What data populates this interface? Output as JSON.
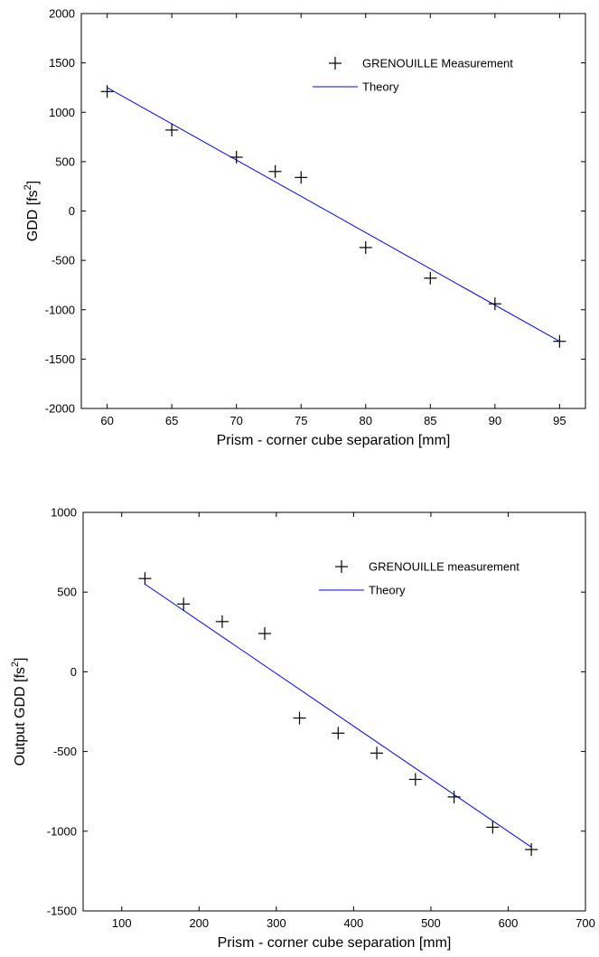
{
  "chart_data": [
    {
      "type": "scatter",
      "xlabel": "Prism - corner cube separation [mm]",
      "ylabel_main": "GDD [fs",
      "ylabel_sup": "2",
      "ylabel_end": "]",
      "xlim": [
        58,
        97
      ],
      "ylim": [
        -2000,
        2000
      ],
      "xticks": [
        60,
        65,
        70,
        75,
        80,
        85,
        90,
        95
      ],
      "yticks": [
        -2000,
        -1500,
        -1000,
        -500,
        0,
        500,
        1000,
        1500,
        2000
      ],
      "grid": false,
      "legend_position": "top-right",
      "series": [
        {
          "name": "GRENOUILLE Measurement",
          "marker": "plus",
          "color": "#000000",
          "x": [
            60,
            65,
            70,
            73,
            75,
            80,
            85,
            90,
            95
          ],
          "y": [
            1210,
            820,
            545,
            400,
            340,
            -370,
            -680,
            -940,
            -1320
          ]
        },
        {
          "name": "Theory",
          "style": "line",
          "color": "#0000ff",
          "x": [
            60,
            95
          ],
          "y": [
            1250,
            -1320
          ]
        }
      ]
    },
    {
      "type": "scatter",
      "xlabel": "Prism - corner cube separation [mm]",
      "ylabel_main": "Output GDD [fs",
      "ylabel_sup": "2",
      "ylabel_end": "]",
      "xlim": [
        50,
        700
      ],
      "ylim": [
        -1500,
        1000
      ],
      "xticks": [
        100,
        200,
        300,
        400,
        500,
        600,
        700
      ],
      "yticks": [
        -1500,
        -1000,
        -500,
        0,
        500,
        1000
      ],
      "grid": false,
      "legend_position": "top-right",
      "series": [
        {
          "name": "GRENOUILLE measurement",
          "marker": "plus",
          "color": "#000000",
          "x": [
            130,
            180,
            230,
            285,
            330,
            380,
            430,
            480,
            530,
            580,
            630
          ],
          "y": [
            585,
            425,
            315,
            240,
            -290,
            -385,
            -510,
            -675,
            -785,
            -975,
            -1115
          ]
        },
        {
          "name": "Theory",
          "style": "line",
          "color": "#0000ff",
          "x": [
            130,
            630
          ],
          "y": [
            550,
            -1100
          ]
        }
      ]
    }
  ]
}
